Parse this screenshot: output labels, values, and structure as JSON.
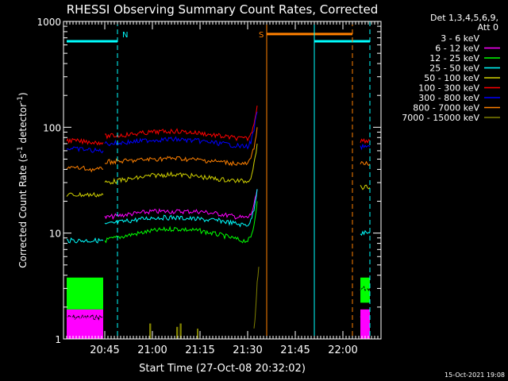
{
  "chart_data": {
    "type": "line",
    "title": "RHESSI Observing Summary Count Rates, Corrected",
    "xlabel": "Start Time (27-Oct-08 20:32:02)",
    "ylabel_main": "Corrected Count Rate (s",
    "ylabel_sup1": "-1",
    "ylabel_mid": " detector",
    "ylabel_sup2": "-1",
    "ylabel_end": ")",
    "yscale": "log",
    "ylim": [
      1,
      1000
    ],
    "xlim_min": [
      0,
      100
    ],
    "x_ticks": [
      {
        "min": 13,
        "label": "20:45"
      },
      {
        "min": 28,
        "label": "21:00"
      },
      {
        "min": 43,
        "label": "21:15"
      },
      {
        "min": 58,
        "label": "21:30"
      },
      {
        "min": 73,
        "label": "21:45"
      },
      {
        "min": 88,
        "label": "22:00"
      }
    ],
    "y_ticks": [
      {
        "value": 1,
        "label": "1"
      },
      {
        "value": 10,
        "label": "10"
      },
      {
        "value": 100,
        "label": "100"
      },
      {
        "value": 1000,
        "label": "1000"
      }
    ],
    "legend": {
      "header1": "Det 1,3,4,5,6,9,",
      "header2": "Att 0",
      "position": "top-right"
    },
    "series": [
      {
        "name": "3 - 6 keV",
        "color": "#000000"
      },
      {
        "name": "6 - 12 keV",
        "color": "#ff00ff"
      },
      {
        "name": "12 - 25 keV",
        "color": "#00ff00"
      },
      {
        "name": "25 - 50 keV",
        "color": "#00ffff"
      },
      {
        "name": "50 - 100 keV",
        "color": "#d2d200"
      },
      {
        "name": "100 - 300 keV",
        "color": "#ff0000"
      },
      {
        "name": "300 - 800 keV",
        "color": "#0000ff"
      },
      {
        "name": "800 - 7000 keV",
        "color": "#ff8000"
      },
      {
        "name": "7000 - 15000 keV",
        "color": "#808000"
      }
    ],
    "curves": [
      {
        "series": 0,
        "segments": [
          {
            "x": [
              1,
              2,
              4,
              6,
              8,
              10,
              12.5
            ],
            "y": [
              1.6,
              1.6,
              1.6,
              1.6,
              1.6,
              1.6,
              1.6
            ]
          },
          {
            "x": [
              13,
              20,
              28,
              35,
              43,
              50,
              56,
              58,
              59,
              60,
              61
            ],
            "y": [
              9,
              10,
              11,
              11.5,
              11,
              10,
              8,
              7,
              7,
              9,
              14
            ]
          },
          {
            "x": [
              93.5,
              95,
              96.5
            ],
            "y": [
              3,
              3,
              3
            ]
          }
        ]
      },
      {
        "series": 1,
        "segments": [
          {
            "x": [
              1,
              2,
              4,
              6,
              8,
              10,
              12.5
            ],
            "y": [
              1.6,
              1.6,
              1.6,
              1.6,
              1.6,
              1.6,
              1.6
            ]
          },
          {
            "x": [
              13,
              20,
              28,
              35,
              43,
              50,
              56,
              58,
              59,
              60,
              61
            ],
            "y": [
              14,
              15,
              16,
              16,
              16,
              15,
              14,
              14,
              15,
              18,
              26
            ]
          },
          {
            "x": [
              93.5,
              95,
              96.5
            ],
            "y": [
              1.6,
              1.6,
              1.6
            ]
          }
        ]
      },
      {
        "series": 2,
        "segments": [
          {
            "x": [
              1,
              2,
              4,
              6,
              8,
              10,
              12.5
            ],
            "y": [
              3,
              3,
              3,
              3,
              3,
              3,
              3
            ]
          },
          {
            "x": [
              13,
              20,
              28,
              35,
              43,
              50,
              56,
              58,
              59,
              60,
              61
            ],
            "y": [
              8.5,
              9.5,
              10.5,
              11,
              10.5,
              9.5,
              8.5,
              8.5,
              9,
              12,
              20
            ]
          },
          {
            "x": [
              93.5,
              95,
              96.5
            ],
            "y": [
              3,
              3,
              3
            ]
          }
        ]
      },
      {
        "series": 3,
        "segments": [
          {
            "x": [
              1,
              2,
              4,
              6,
              8,
              10,
              12.5
            ],
            "y": [
              8.5,
              8.5,
              8.5,
              8.5,
              8.5,
              8.5,
              8.5
            ]
          },
          {
            "x": [
              13,
              20,
              28,
              35,
              43,
              50,
              56,
              58,
              59,
              60,
              61
            ],
            "y": [
              12,
              13,
              14,
              14,
              13.5,
              13,
              12,
              12,
              13,
              17,
              26
            ]
          },
          {
            "x": [
              93.5,
              95,
              96.5
            ],
            "y": [
              10,
              10,
              10
            ]
          }
        ]
      },
      {
        "series": 4,
        "segments": [
          {
            "x": [
              1,
              2,
              4,
              6,
              8,
              10,
              12.5
            ],
            "y": [
              23,
              23,
              23,
              23,
              23,
              23,
              23
            ]
          },
          {
            "x": [
              13,
              20,
              28,
              35,
              43,
              50,
              56,
              58,
              59,
              60,
              61
            ],
            "y": [
              30,
              32,
              35,
              36,
              34,
              32,
              31,
              31,
              34,
              45,
              70
            ]
          },
          {
            "x": [
              93.5,
              95,
              96.5
            ],
            "y": [
              27,
              27,
              27
            ]
          }
        ]
      },
      {
        "series": 5,
        "segments": [
          {
            "x": [
              1,
              2,
              4,
              6,
              8,
              10,
              12.5
            ],
            "y": [
              75,
              75,
              74,
              73,
              73,
              72,
              72
            ]
          },
          {
            "x": [
              13,
              20,
              28,
              35,
              43,
              50,
              56,
              58,
              59,
              60,
              61
            ],
            "y": [
              82,
              85,
              90,
              92,
              88,
              82,
              78,
              78,
              85,
              110,
              160
            ]
          },
          {
            "x": [
              93.5,
              95,
              96.5
            ],
            "y": [
              75,
              75,
              75
            ]
          }
        ]
      },
      {
        "series": 6,
        "segments": [
          {
            "x": [
              1,
              2,
              4,
              6,
              8,
              10,
              12.5
            ],
            "y": [
              63,
              63,
              62,
              62,
              61,
              60,
              60
            ]
          },
          {
            "x": [
              13,
              20,
              28,
              35,
              43,
              50,
              56,
              58,
              59,
              60,
              61
            ],
            "y": [
              70,
              72,
              76,
              77,
              74,
              70,
              66,
              66,
              72,
              95,
              140
            ]
          },
          {
            "x": [
              93.5,
              95,
              96.5
            ],
            "y": [
              65,
              65,
              65
            ]
          }
        ]
      },
      {
        "series": 7,
        "segments": [
          {
            "x": [
              1,
              2,
              4,
              6,
              8,
              10,
              12.5
            ],
            "y": [
              42,
              42,
              41,
              41,
              40,
              40,
              40
            ]
          },
          {
            "x": [
              13,
              20,
              28,
              35,
              43,
              50,
              56,
              58,
              59,
              60,
              61
            ],
            "y": [
              47,
              48,
              50,
              51,
              49,
              47,
              45,
              45,
              50,
              65,
              100
            ]
          },
          {
            "x": [
              93.5,
              95,
              96.5
            ],
            "y": [
              45,
              45,
              45
            ]
          }
        ]
      },
      {
        "series": 8,
        "segments": [
          {
            "x": [
              60,
              60.6,
              61,
              61.5
            ],
            "y": [
              1.2,
              2,
              3.5,
              4.8
            ]
          }
        ]
      }
    ],
    "bands": [
      {
        "series": 1,
        "x0": 1,
        "x1": 12.5,
        "y0": 1,
        "y1": 1.9
      },
      {
        "series": 2,
        "x0": 1,
        "x1": 12.5,
        "y0": 1.9,
        "y1": 3.8
      },
      {
        "series": 1,
        "x0": 93.5,
        "x1": 96.5,
        "y0": 1,
        "y1": 1.9
      },
      {
        "series": 2,
        "x0": 93.5,
        "x1": 96.5,
        "y0": 2.2,
        "y1": 3.8
      },
      {
        "series": 8,
        "x0": 27,
        "x1": 27.6,
        "y0": 1,
        "y1": 1.4
      },
      {
        "series": 8,
        "x0": 35.5,
        "x1": 36.1,
        "y0": 1,
        "y1": 1.3
      },
      {
        "series": 8,
        "x0": 36.6,
        "x1": 37.2,
        "y0": 1,
        "y1": 1.4
      },
      {
        "series": 8,
        "x0": 42,
        "x1": 42.5,
        "y0": 1,
        "y1": 1.25
      }
    ],
    "markers": [
      {
        "label": "N",
        "color": "#00ffff",
        "x0": 1,
        "x1": 17,
        "y": 650,
        "line_x": 17,
        "style": "dashed"
      },
      {
        "label": "S",
        "color": "#ff8000",
        "x0": 64,
        "x1": 91,
        "y": 760,
        "line_x": 64,
        "style": "solid"
      },
      {
        "label": "",
        "color": "#00ffff",
        "x0": 79,
        "x1": 96.5,
        "y": 650,
        "line_x": 79,
        "style": "solid"
      },
      {
        "label": "",
        "color": "#ff8000",
        "x0": 91,
        "x1": 91,
        "y": 760,
        "line_x": 91,
        "style": "dashed"
      },
      {
        "label": "",
        "color": "#00ffff",
        "x0": 96.5,
        "x1": 96.5,
        "y": 650,
        "line_x": 96.5,
        "style": "dashed"
      }
    ]
  },
  "footer": {
    "timestamp": "15-Oct-2021 19:08"
  }
}
